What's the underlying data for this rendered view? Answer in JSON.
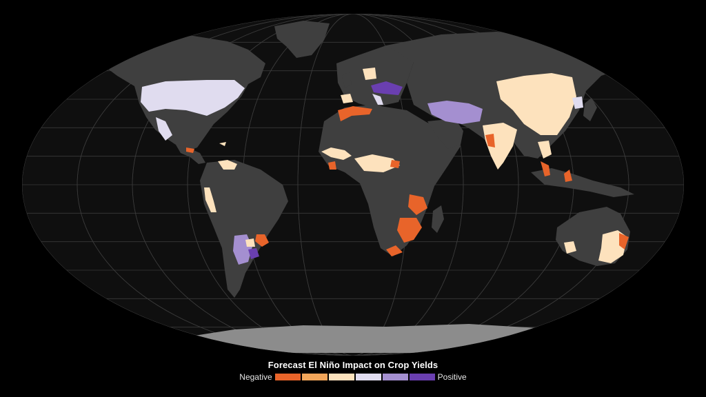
{
  "legend": {
    "title": "Forecast El Niño Impact on Crop Yields",
    "negative_label": "Negative",
    "positive_label": "Positive",
    "colors": [
      "#e8642a",
      "#f2a65a",
      "#fde2bd",
      "#e0dcef",
      "#a48fd0",
      "#6a3fb0"
    ]
  },
  "map": {
    "ocean_color": "#0f0f0f",
    "land_color": "#3f3f3f",
    "ice_color": "#8c8c8c",
    "graticule_color": "#3a3a3a"
  }
}
